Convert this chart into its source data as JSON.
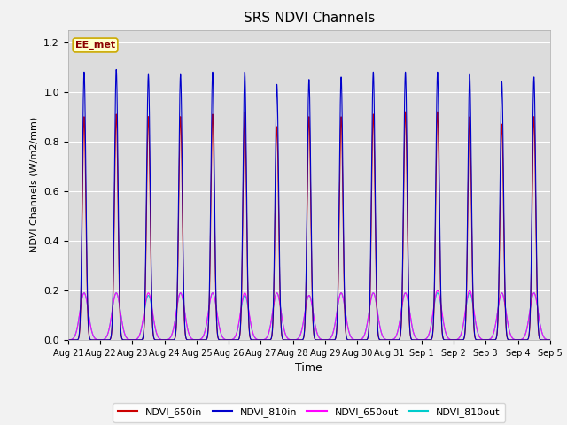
{
  "title": "SRS NDVI Channels",
  "xlabel": "Time",
  "ylabel": "NDVI Channels (W/m2/mm)",
  "ylim": [
    0.0,
    1.25
  ],
  "annotation_text": "EE_met",
  "colors": {
    "NDVI_650in": "#cc0000",
    "NDVI_810in": "#0000cc",
    "NDVI_650out": "#ff00ff",
    "NDVI_810out": "#00cccc"
  },
  "legend_labels": [
    "NDVI_650in",
    "NDVI_810in",
    "NDVI_650out",
    "NDVI_810out"
  ],
  "date_labels": [
    "Aug 21",
    "Aug 22",
    "Aug 23",
    "Aug 24",
    "Aug 25",
    "Aug 26",
    "Aug 27",
    "Aug 28",
    "Aug 29",
    "Aug 30",
    "Aug 31",
    "Sep 1",
    "Sep 2",
    "Sep 3",
    "Sep 4",
    "Sep 5"
  ],
  "n_days": 15,
  "peaks_650in": [
    0.9,
    0.91,
    0.9,
    0.9,
    0.91,
    0.92,
    0.86,
    0.9,
    0.9,
    0.91,
    0.92,
    0.92,
    0.9,
    0.87,
    0.9
  ],
  "peaks_810in": [
    1.08,
    1.09,
    1.07,
    1.07,
    1.08,
    1.08,
    1.03,
    1.05,
    1.06,
    1.08,
    1.08,
    1.08,
    1.07,
    1.04,
    1.06
  ],
  "peaks_650out": [
    0.19,
    0.19,
    0.19,
    0.19,
    0.19,
    0.19,
    0.19,
    0.18,
    0.19,
    0.19,
    0.19,
    0.2,
    0.2,
    0.19,
    0.19
  ],
  "peaks_810out": [
    0.19,
    0.19,
    0.18,
    0.19,
    0.19,
    0.18,
    0.19,
    0.18,
    0.19,
    0.19,
    0.19,
    0.19,
    0.19,
    0.19,
    0.19
  ],
  "background_color": "#dcdcdc",
  "fig_background": "#f2f2f2",
  "sigma_in": 0.055,
  "sigma_out": 0.13
}
